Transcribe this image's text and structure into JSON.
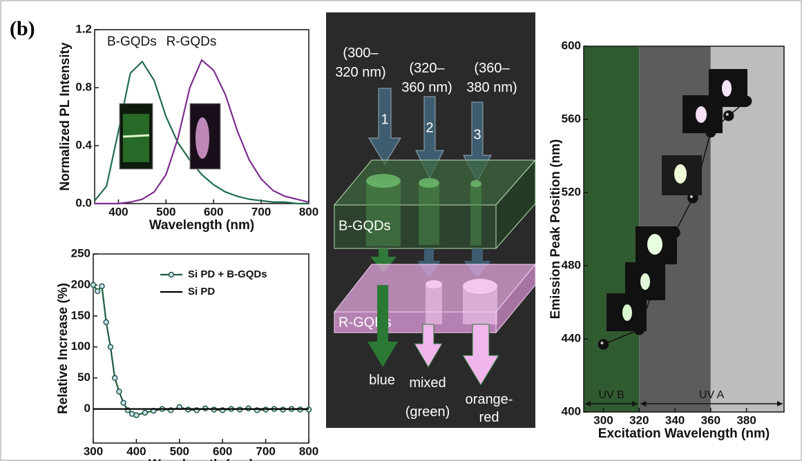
{
  "panel_label": "(b)",
  "chart_data": [
    {
      "type": "line",
      "xlabel": "Wavelength (nm)",
      "ylabel": "Normalized PL Intensity",
      "xlim": [
        350,
        800
      ],
      "xticks": [
        400,
        500,
        600,
        700,
        800
      ],
      "ylim": [
        0,
        1.2
      ],
      "yticks": [
        {
          "value": 0,
          "label": "0.0"
        },
        0.4,
        0.8,
        1.2
      ],
      "series": [
        {
          "name": "B-GQDs",
          "color": "#1f6b4c",
          "x": [
            350,
            375,
            400,
            425,
            450,
            475,
            500,
            525,
            550,
            575,
            600,
            625,
            650,
            675,
            700,
            725,
            750,
            775,
            800
          ],
          "values": [
            0.02,
            0.12,
            0.5,
            0.9,
            0.98,
            0.85,
            0.6,
            0.42,
            0.3,
            0.2,
            0.13,
            0.08,
            0.05,
            0.03,
            0.02,
            0.01,
            0.01,
            0,
            0
          ]
        },
        {
          "name": "R-GQDs",
          "color": "#7b2d8e",
          "x": [
            350,
            375,
            400,
            425,
            450,
            475,
            500,
            525,
            550,
            575,
            600,
            625,
            650,
            675,
            700,
            725,
            750,
            775,
            800
          ],
          "values": [
            0,
            0,
            0,
            0.01,
            0.03,
            0.08,
            0.2,
            0.45,
            0.8,
            0.99,
            0.92,
            0.75,
            0.5,
            0.3,
            0.17,
            0.09,
            0.05,
            0.03,
            0.01
          ]
        }
      ]
    },
    {
      "type": "line",
      "xlabel": "Wavelength (nm)",
      "ylabel": "Relative Increase (%)",
      "xlim": [
        300,
        800
      ],
      "xticks": [
        300,
        400,
        500,
        600,
        700,
        800
      ],
      "ylim": [
        -55,
        250
      ],
      "yticks": [
        0,
        50,
        100,
        150,
        200,
        250
      ],
      "legend": "upper right",
      "series": [
        {
          "name": "Si PD + B-GQDs",
          "color": "#1f5a40",
          "marker": true,
          "x": [
            300,
            310,
            320,
            330,
            340,
            350,
            360,
            370,
            380,
            390,
            400,
            420,
            440,
            460,
            480,
            500,
            520,
            540,
            560,
            580,
            600,
            620,
            640,
            660,
            680,
            700,
            720,
            740,
            760,
            780,
            800
          ],
          "values": [
            200,
            190,
            198,
            140,
            100,
            50,
            28,
            10,
            -2,
            -8,
            -10,
            -6,
            -3,
            0,
            -2,
            3,
            -1,
            -2,
            1,
            -1,
            -2,
            0,
            -1,
            1,
            -2,
            -1,
            0,
            -1,
            0,
            -1,
            -1
          ]
        },
        {
          "name": "Si PD",
          "color": "#000000",
          "x": [
            300,
            800
          ],
          "values": [
            0,
            0
          ]
        }
      ]
    },
    {
      "type": "scatter",
      "xlabel": "Excitation Wavelength (nm)",
      "ylabel": "Emission Peak Position (nm)",
      "xlim": [
        289,
        401
      ],
      "xticks": [
        300,
        320,
        340,
        360,
        380
      ],
      "ylim": [
        400,
        600
      ],
      "yticks": [
        400,
        440,
        480,
        520,
        560,
        600
      ],
      "regions": [
        {
          "from": 289,
          "to": 320,
          "color": "#305a30"
        },
        {
          "from": 320,
          "to": 360,
          "color": "#5c5c5c"
        },
        {
          "from": 360,
          "to": 401,
          "color": "#bdbdbd"
        }
      ],
      "annotations": [
        {
          "text": "UV B",
          "from": 289,
          "to": 320
        },
        {
          "text": "UV A",
          "from": 320,
          "to": 401
        }
      ],
      "series": [
        {
          "color": "#111111",
          "x": [
            300,
            320,
            330,
            340,
            350,
            360,
            370,
            380
          ],
          "values": [
            437,
            445,
            473,
            498,
            517,
            553,
            562,
            570
          ]
        }
      ]
    }
  ],
  "diagram": {
    "excitations": [
      {
        "lines": [
          "(300–",
          "320 nm)"
        ],
        "number": "1"
      },
      {
        "lines": [
          "(320–",
          "360 nm)"
        ],
        "number": "2"
      },
      {
        "lines": [
          "(360–",
          "380 nm)"
        ],
        "number": "3"
      }
    ],
    "layers": [
      "B-GQDs",
      "R-GQDs"
    ],
    "outputs": [
      {
        "lines": [
          "blue"
        ]
      },
      {
        "lines": [
          "mixed",
          "(green)"
        ]
      },
      {
        "lines": [
          "orange-",
          "red"
        ]
      }
    ]
  }
}
